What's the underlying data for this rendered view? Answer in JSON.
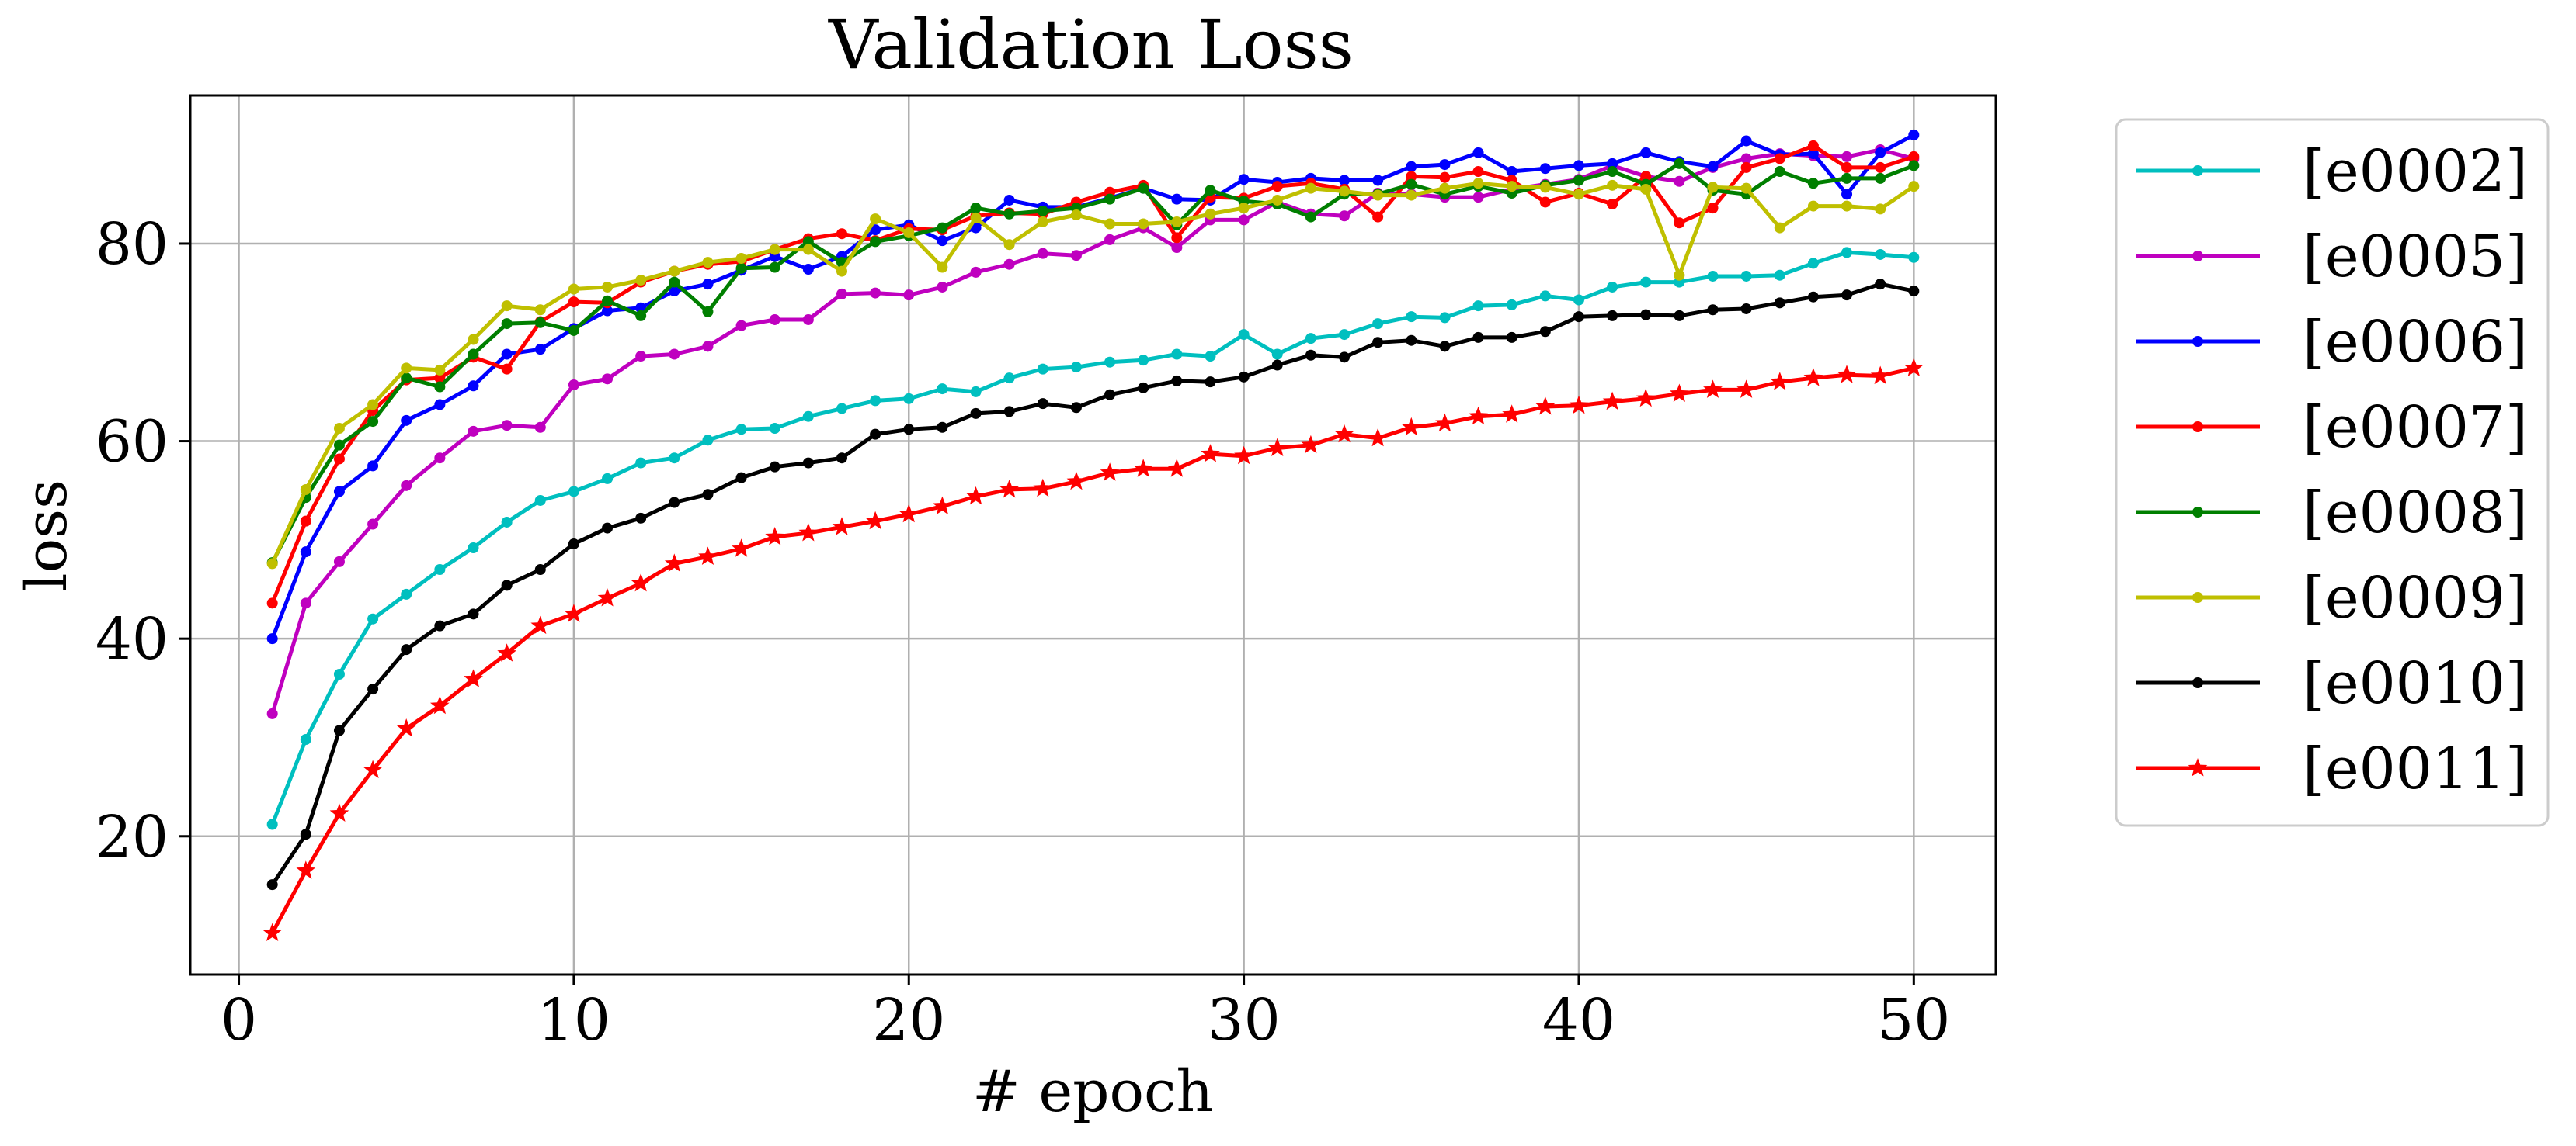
{
  "chart_data": {
    "type": "line",
    "title": "Validation Loss",
    "xlabel": "# epoch",
    "ylabel": "loss",
    "xlim": [
      -1.45,
      52.45
    ],
    "ylim": [
      6,
      95
    ],
    "xticks": [
      0,
      10,
      20,
      30,
      40,
      50
    ],
    "yticks": [
      20,
      40,
      60,
      80
    ],
    "grid": true,
    "legend_position": "outside-right",
    "x": [
      1,
      2,
      3,
      4,
      5,
      6,
      7,
      8,
      9,
      10,
      11,
      12,
      13,
      14,
      15,
      16,
      17,
      18,
      19,
      20,
      21,
      22,
      23,
      24,
      25,
      26,
      27,
      28,
      29,
      30,
      31,
      32,
      33,
      34,
      35,
      36,
      37,
      38,
      39,
      40,
      41,
      42,
      43,
      44,
      45,
      46,
      47,
      48,
      49,
      50
    ],
    "series": [
      {
        "name": "[e0002]",
        "color": "#00bfbf",
        "marker": "dot",
        "values": [
          21.2,
          29.8,
          36.4,
          42.0,
          44.5,
          47.0,
          49.2,
          51.8,
          54.0,
          54.9,
          56.2,
          57.8,
          58.3,
          60.1,
          61.2,
          61.3,
          62.5,
          63.3,
          64.1,
          64.3,
          65.3,
          65.0,
          66.4,
          67.3,
          67.5,
          68.0,
          68.2,
          68.8,
          68.6,
          70.8,
          68.8,
          70.4,
          70.8,
          71.9,
          72.6,
          72.5,
          73.7,
          73.8,
          74.7,
          74.3,
          75.6,
          76.1,
          76.1,
          76.7,
          76.7,
          76.8,
          78.0,
          79.1,
          78.9,
          78.6
        ]
      },
      {
        "name": "[e0005]",
        "color": "#bf00bf",
        "marker": "dot",
        "values": [
          32.4,
          43.6,
          47.8,
          51.6,
          55.5,
          58.3,
          61.0,
          61.6,
          61.4,
          65.7,
          66.3,
          68.6,
          68.8,
          69.6,
          71.7,
          72.3,
          72.3,
          74.9,
          75.0,
          74.8,
          75.6,
          77.1,
          77.9,
          79.0,
          78.8,
          80.4,
          81.6,
          79.6,
          82.4,
          82.4,
          84.2,
          83.0,
          82.8,
          85.1,
          85.0,
          84.7,
          84.7,
          85.5,
          86.0,
          86.5,
          87.9,
          86.8,
          86.3,
          87.7,
          88.6,
          89.1,
          88.9,
          88.8,
          89.5,
          88.6
        ]
      },
      {
        "name": "[e0006]",
        "color": "#0000ff",
        "marker": "dot",
        "values": [
          40.0,
          48.8,
          54.9,
          57.5,
          62.1,
          63.7,
          65.6,
          68.8,
          69.3,
          71.4,
          73.2,
          73.5,
          75.2,
          75.9,
          77.3,
          78.7,
          77.4,
          78.7,
          81.4,
          81.9,
          80.3,
          81.6,
          84.4,
          83.7,
          83.7,
          84.6,
          85.6,
          84.5,
          84.4,
          86.5,
          86.2,
          86.6,
          86.4,
          86.4,
          87.8,
          88.0,
          89.2,
          87.3,
          87.6,
          87.9,
          88.1,
          89.2,
          88.3,
          87.8,
          90.4,
          89.0,
          89.1,
          85.0,
          89.2,
          91.0
        ]
      },
      {
        "name": "[e0007]",
        "color": "#ff0000",
        "marker": "dot",
        "values": [
          43.6,
          51.9,
          58.2,
          63.1,
          66.2,
          66.4,
          68.5,
          67.3,
          72.1,
          74.1,
          74.0,
          76.1,
          77.2,
          77.9,
          78.2,
          79.4,
          80.5,
          81.0,
          80.3,
          81.5,
          81.4,
          82.8,
          83.1,
          83.0,
          84.2,
          85.2,
          85.9,
          80.6,
          84.7,
          84.6,
          85.8,
          86.1,
          85.5,
          82.7,
          86.8,
          86.7,
          87.3,
          86.4,
          84.2,
          85.1,
          84.0,
          86.8,
          82.1,
          83.6,
          87.7,
          88.6,
          89.9,
          87.7,
          87.7,
          88.8
        ]
      },
      {
        "name": "[e0008]",
        "color": "#007f00",
        "marker": "dot",
        "values": [
          47.7,
          54.3,
          59.6,
          62.0,
          66.4,
          65.5,
          68.8,
          71.9,
          72.0,
          71.2,
          74.2,
          72.7,
          76.1,
          73.1,
          77.5,
          77.6,
          80.2,
          78.1,
          80.2,
          80.8,
          81.6,
          83.6,
          83.0,
          83.3,
          83.6,
          84.5,
          85.6,
          81.9,
          85.4,
          84.3,
          84.0,
          82.7,
          85.0,
          85.0,
          86.0,
          85.0,
          85.8,
          85.1,
          85.9,
          86.4,
          87.3,
          86.0,
          88.1,
          85.4,
          85.0,
          87.3,
          86.1,
          86.6,
          86.6,
          87.9
        ]
      },
      {
        "name": "[e0009]",
        "color": "#bfbf00",
        "marker": "dot",
        "values": [
          47.6,
          55.1,
          61.3,
          63.7,
          67.4,
          67.2,
          70.3,
          73.7,
          73.3,
          75.4,
          75.6,
          76.3,
          77.2,
          78.1,
          78.5,
          79.4,
          79.4,
          77.2,
          82.5,
          81.1,
          77.6,
          82.6,
          79.9,
          82.2,
          82.9,
          82.0,
          82.0,
          82.2,
          83.0,
          83.6,
          84.4,
          85.6,
          85.3,
          84.9,
          84.9,
          85.6,
          86.1,
          85.8,
          85.7,
          85.0,
          85.9,
          85.5,
          76.8,
          85.7,
          85.6,
          81.6,
          83.8,
          83.8,
          83.5,
          85.8
        ]
      },
      {
        "name": "[e0010]",
        "color": "#000000",
        "marker": "dot",
        "values": [
          15.1,
          20.2,
          30.7,
          34.9,
          38.9,
          41.3,
          42.5,
          45.4,
          47.0,
          49.6,
          51.2,
          52.2,
          53.8,
          54.6,
          56.3,
          57.4,
          57.8,
          58.3,
          60.7,
          61.2,
          61.4,
          62.8,
          63.0,
          63.8,
          63.4,
          64.7,
          65.4,
          66.1,
          66.0,
          66.5,
          67.7,
          68.7,
          68.5,
          70.0,
          70.2,
          69.6,
          70.5,
          70.5,
          71.1,
          72.6,
          72.7,
          72.8,
          72.7,
          73.3,
          73.4,
          74.0,
          74.6,
          74.8,
          75.9,
          75.2
        ]
      },
      {
        "name": "[e0011]",
        "color": "#ff0000",
        "marker": "star",
        "values": [
          10.2,
          16.5,
          22.3,
          26.7,
          30.9,
          33.2,
          35.9,
          38.5,
          41.3,
          42.5,
          44.1,
          45.6,
          47.6,
          48.3,
          49.1,
          50.3,
          50.7,
          51.3,
          51.9,
          52.6,
          53.4,
          54.4,
          55.1,
          55.2,
          55.9,
          56.8,
          57.2,
          57.2,
          58.7,
          58.5,
          59.3,
          59.6,
          60.7,
          60.3,
          61.4,
          61.8,
          62.5,
          62.7,
          63.5,
          63.6,
          64.0,
          64.3,
          64.8,
          65.2,
          65.2,
          66.0,
          66.4,
          66.7,
          66.6,
          67.4
        ]
      }
    ]
  }
}
